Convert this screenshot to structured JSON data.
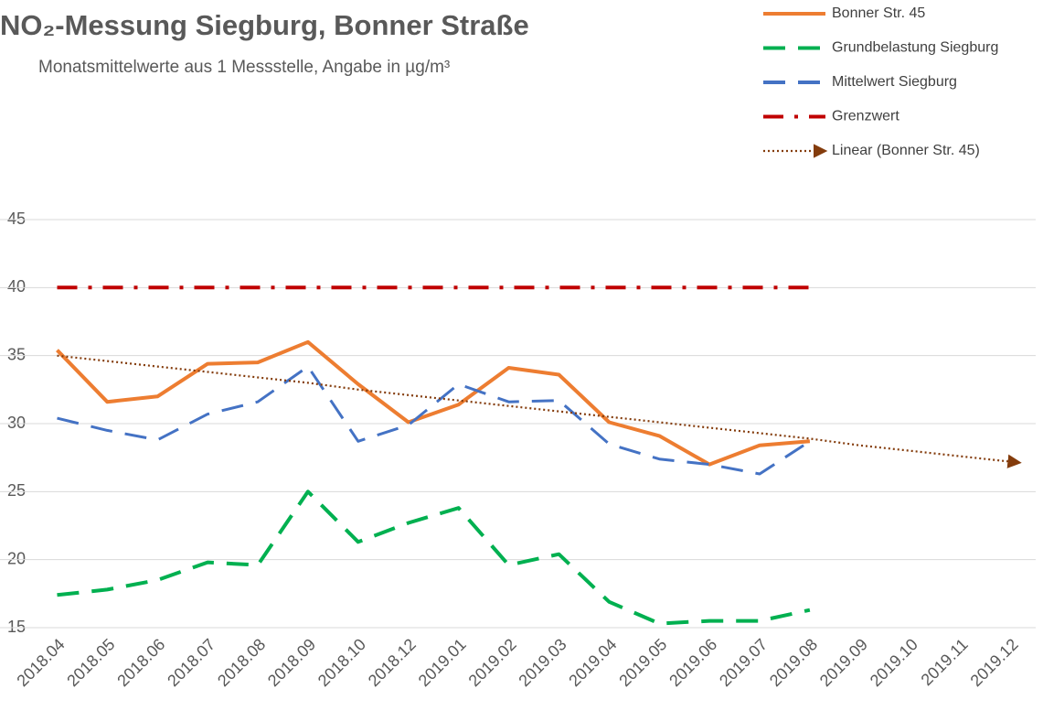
{
  "chart_data": {
    "type": "line",
    "title": "NO₂-Messung Siegburg, Bonner Straße",
    "subtitle": "Monatsmittelwerte aus 1 Messstelle, Angabe in µg/m³",
    "categories": [
      "2018.04",
      "2018.05",
      "2018.06",
      "2018.07",
      "2018.08",
      "2018.09",
      "2018.10",
      "2018.12",
      "2019.01",
      "2019.02",
      "2019.03",
      "2019.04",
      "2019.05",
      "2019.06",
      "2019.07",
      "2019.08",
      "2019.09",
      "2019.10",
      "2019.11",
      "2019.12"
    ],
    "series": [
      {
        "name": "Bonner Str. 45",
        "color": "#ed7d31",
        "style": "solid",
        "values": [
          35.4,
          31.6,
          32.0,
          34.4,
          34.5,
          36.0,
          32.9,
          30.1,
          31.4,
          34.1,
          33.6,
          30.1,
          29.1,
          27.0,
          28.4,
          28.7,
          null,
          null,
          null,
          null
        ]
      },
      {
        "name": "Grundbelastung Siegburg",
        "color": "#00b050",
        "style": "dashed",
        "values": [
          17.4,
          17.8,
          18.5,
          19.8,
          19.6,
          25.0,
          21.3,
          22.7,
          23.8,
          19.6,
          20.4,
          16.9,
          15.3,
          15.5,
          15.5,
          16.3,
          null,
          null,
          null,
          null
        ]
      },
      {
        "name": "Mittelwert Siegburg",
        "color": "#4472c4",
        "style": "dashed",
        "values": [
          30.4,
          29.5,
          28.8,
          30.7,
          31.6,
          34.2,
          28.7,
          29.9,
          32.9,
          31.6,
          31.7,
          28.5,
          27.4,
          27.0,
          26.3,
          28.7,
          null,
          null,
          null,
          null
        ]
      },
      {
        "name": "Grenzwert",
        "color": "#c00000",
        "style": "dash-dot",
        "values": [
          40,
          40,
          40,
          40,
          40,
          40,
          40,
          40,
          40,
          40,
          40,
          40,
          40,
          40,
          40,
          40,
          null,
          null,
          null,
          null
        ]
      },
      {
        "name": "Linear (Bonner Str. 45)",
        "color": "#843c0c",
        "style": "dotted-arrow",
        "values": [
          35.0,
          34.6,
          34.2,
          33.8,
          33.4,
          33.0,
          32.5,
          32.1,
          31.7,
          31.3,
          30.9,
          30.5,
          30.1,
          29.7,
          29.3,
          28.9,
          28.4,
          28.0,
          27.6,
          27.2
        ]
      }
    ],
    "ylim": [
      15,
      45
    ],
    "yticks": [
      15,
      20,
      25,
      30,
      35,
      40,
      45
    ],
    "grid": true,
    "legend": "top-right"
  }
}
